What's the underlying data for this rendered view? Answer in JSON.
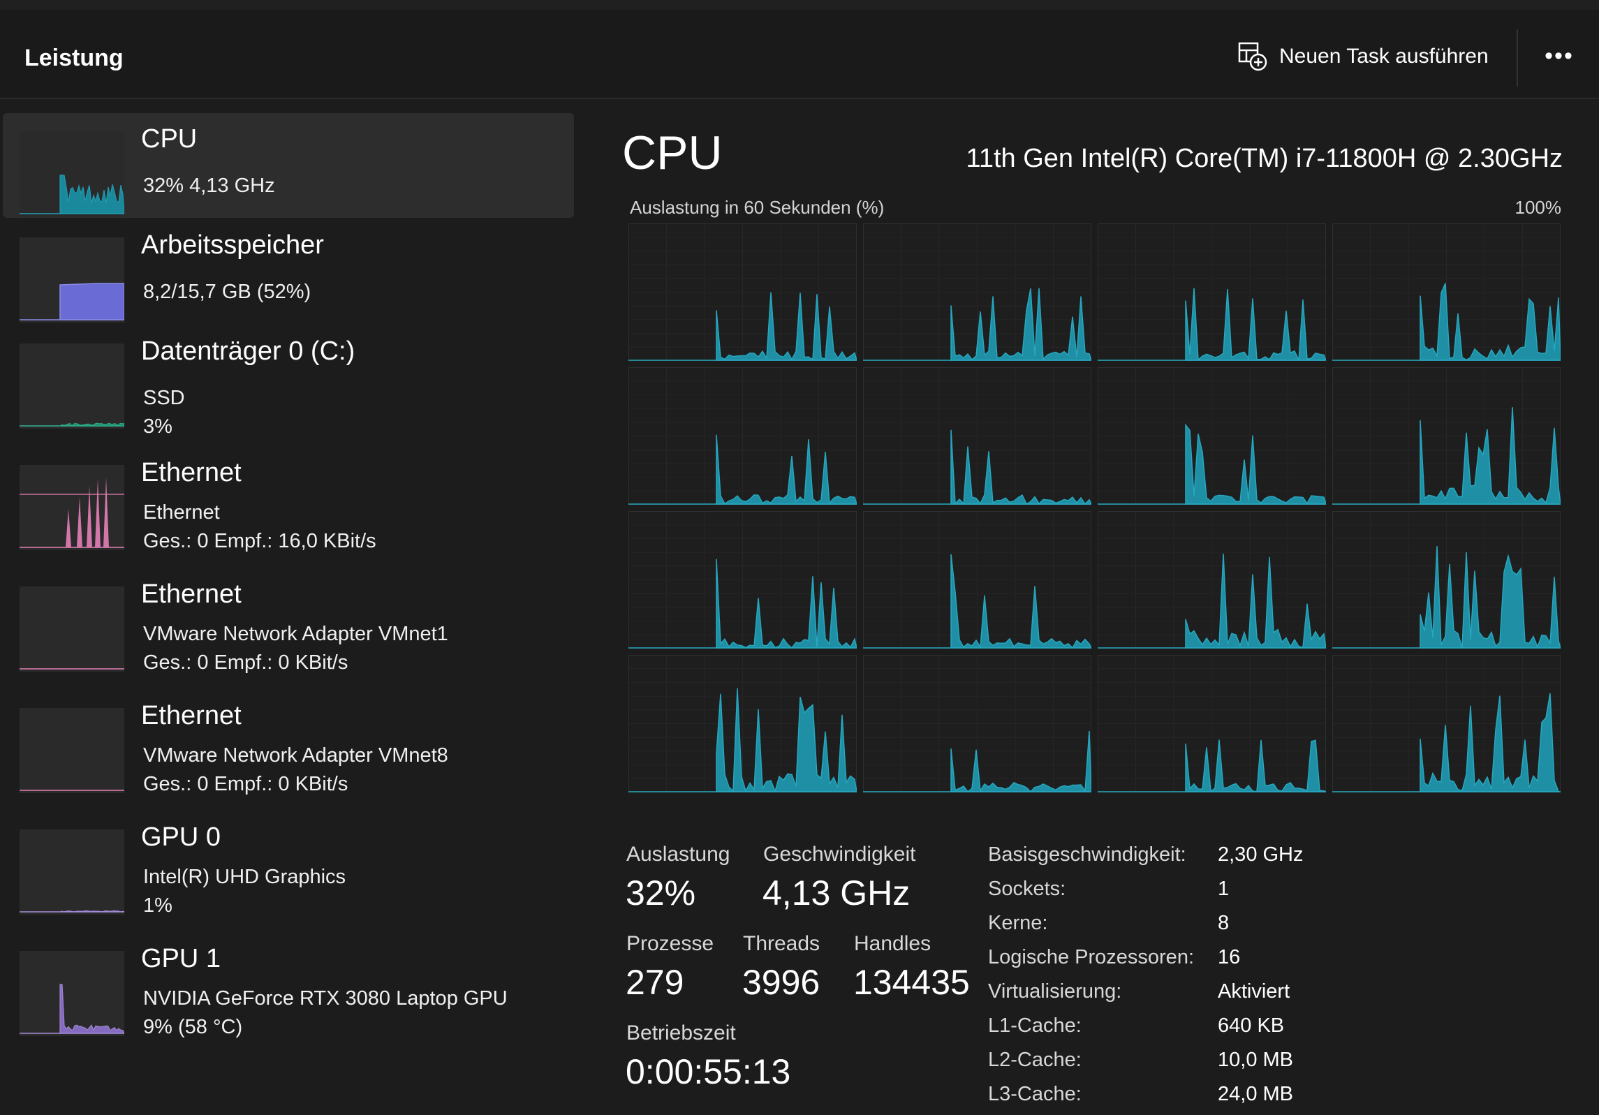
{
  "header": {
    "title": "Leistung",
    "run_task_label": "Neuen Task ausführen",
    "more_label": "•••"
  },
  "sidebar": {
    "items": [
      {
        "title": "CPU",
        "lines": [
          "32%  4,13 GHz"
        ],
        "color": "#21a1b8",
        "fill": "#1a8fa3",
        "level": 0.32
      },
      {
        "title": "Arbeitsspeicher",
        "lines": [
          "8,2/15,7 GB (52%)"
        ],
        "color": "#8a8ae6",
        "fill": "#6b6bd6",
        "level": 0.52
      },
      {
        "title": "Datenträger 0 (C:)",
        "lines": [
          "SSD",
          "3%"
        ],
        "color": "#2fb38f",
        "fill": "#1f8f70",
        "level": 0.03
      },
      {
        "title": "Ethernet",
        "lines": [
          "Ethernet",
          "Ges.: 0  Empf.: 16,0 KBit/s"
        ],
        "color": "#e57fb8",
        "fill": "#e57fb8",
        "level": 0.0
      },
      {
        "title": "Ethernet",
        "lines": [
          "VMware Network Adapter VMnet1",
          "Ges.: 0  Empf.: 0 KBit/s"
        ],
        "color": "#e57fb8",
        "fill": "#e57fb8",
        "level": 0.0
      },
      {
        "title": "Ethernet",
        "lines": [
          "VMware Network Adapter VMnet8",
          "Ges.: 0  Empf.: 0 KBit/s"
        ],
        "color": "#e57fb8",
        "fill": "#e57fb8",
        "level": 0.0
      },
      {
        "title": "GPU 0",
        "lines": [
          "Intel(R) UHD Graphics",
          "1%"
        ],
        "color": "#a48bd8",
        "fill": "#8a6fc8",
        "level": 0.01
      },
      {
        "title": "GPU 1",
        "lines": [
          "NVIDIA GeForce RTX 3080 Laptop GPU",
          "9%  (58 °C)"
        ],
        "color": "#a48bd8",
        "fill": "#8a6fc8",
        "level": 0.09
      }
    ]
  },
  "main": {
    "title": "CPU",
    "model": "11th Gen Intel(R) Core(TM) i7-11800H @ 2.30GHz",
    "graph_label": "Auslastung in 60 Sekunden (%)",
    "graph_max": "100%",
    "graph_color": "#27a7bf",
    "core_count": 16
  },
  "stats": {
    "utilization_label": "Auslastung",
    "utilization_value": "32%",
    "speed_label": "Geschwindigkeit",
    "speed_value": "4,13 GHz",
    "processes_label": "Prozesse",
    "processes_value": "279",
    "threads_label": "Threads",
    "threads_value": "3996",
    "handles_label": "Handles",
    "handles_value": "134435",
    "uptime_label": "Betriebszeit",
    "uptime_value": "0:00:55:13"
  },
  "specs": [
    {
      "label": "Basisgeschwindigkeit:",
      "value": "2,30 GHz"
    },
    {
      "label": "Sockets:",
      "value": "1"
    },
    {
      "label": "Kerne:",
      "value": "8"
    },
    {
      "label": "Logische Prozessoren:",
      "value": "16"
    },
    {
      "label": "Virtualisierung:",
      "value": "Aktiviert"
    },
    {
      "label": "L1-Cache:",
      "value": "640 KB"
    },
    {
      "label": "L2-Cache:",
      "value": "10,0 MB"
    },
    {
      "label": "L3-Cache:",
      "value": "24,0 MB"
    }
  ]
}
